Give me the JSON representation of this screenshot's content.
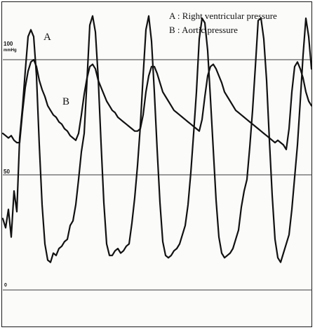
{
  "chart_data": {
    "type": "line",
    "title": "",
    "xlabel": "",
    "ylabel": "",
    "y_tick_labels": {
      "top": "100",
      "top_unit": "mmHg",
      "mid": "50",
      "zero": "0"
    },
    "y_ticks": [
      100,
      50,
      0
    ],
    "ylim": [
      -10,
      120
    ],
    "x_range": [
      0,
      449
    ],
    "grid": true,
    "legend": {
      "placement": "top-right",
      "entries": [
        {
          "key": "A",
          "text": "A : Right ventricular pressure"
        },
        {
          "key": "B",
          "text": "B : Aortic pressure"
        }
      ]
    },
    "series": [
      {
        "key": "A",
        "color": "#111111",
        "x": [
          4,
          8,
          12,
          16,
          20,
          24,
          28,
          32,
          36,
          40,
          44,
          48,
          52,
          56,
          60,
          64,
          68,
          72,
          76,
          80,
          84,
          88,
          92,
          96,
          100,
          104,
          108,
          112,
          116,
          120,
          124,
          128,
          132,
          136,
          140,
          144,
          148,
          152,
          156,
          160,
          164,
          168,
          172,
          176,
          180,
          184,
          188,
          192,
          196,
          200,
          204,
          208,
          212,
          216,
          220,
          224,
          228,
          232,
          236,
          240,
          244,
          248,
          252,
          256,
          260,
          264,
          268,
          272,
          276,
          280,
          284,
          288,
          292,
          296,
          300,
          304,
          308,
          312,
          316,
          320,
          324,
          328,
          332,
          336,
          340,
          344,
          348,
          352,
          356,
          360,
          364,
          368,
          372,
          376,
          380,
          384,
          388,
          392,
          396,
          400,
          404,
          408,
          412,
          416,
          420,
          424,
          428,
          432,
          436,
          440,
          444
        ],
        "values": [
          31,
          27,
          35,
          23,
          43,
          34,
          66,
          79,
          95,
          110,
          113,
          110,
          93,
          63,
          37,
          20,
          13,
          12,
          16,
          15,
          18,
          19,
          21,
          22,
          28,
          30,
          37,
          48,
          60,
          68,
          91,
          115,
          119,
          112,
          92,
          64,
          38,
          20,
          15,
          15,
          17,
          18,
          16,
          17,
          19,
          20,
          29,
          40,
          54,
          71,
          93,
          113,
          119,
          108,
          86,
          61,
          38,
          21,
          15,
          14,
          15,
          17,
          18,
          20,
          24,
          28,
          37,
          51,
          68,
          86,
          109,
          118,
          116,
          104,
          83,
          61,
          39,
          23,
          16,
          14,
          15,
          16,
          18,
          22,
          26,
          36,
          43,
          48,
          62,
          78,
          97,
          117,
          118,
          109,
          91,
          65,
          41,
          22,
          14,
          12,
          16,
          20,
          24,
          35,
          49,
          63,
          82,
          102,
          118,
          110,
          96
        ]
      },
      {
        "key": "B",
        "color": "#111111",
        "x": [
          4,
          8,
          12,
          16,
          20,
          24,
          28,
          32,
          36,
          40,
          44,
          48,
          52,
          56,
          60,
          64,
          68,
          72,
          76,
          80,
          84,
          88,
          92,
          96,
          100,
          104,
          108,
          112,
          116,
          120,
          124,
          128,
          132,
          136,
          140,
          144,
          148,
          152,
          156,
          160,
          164,
          168,
          172,
          176,
          180,
          184,
          188,
          192,
          196,
          200,
          204,
          208,
          212,
          216,
          220,
          224,
          228,
          232,
          236,
          240,
          244,
          248,
          252,
          256,
          260,
          264,
          268,
          272,
          276,
          280,
          284,
          288,
          292,
          296,
          300,
          304,
          308,
          312,
          316,
          320,
          324,
          328,
          332,
          336,
          340,
          344,
          348,
          352,
          356,
          360,
          364,
          368,
          372,
          376,
          380,
          384,
          388,
          392,
          396,
          400,
          404,
          408,
          412,
          416,
          420,
          424,
          428,
          432,
          436,
          440,
          444
        ],
        "values": [
          68,
          67,
          66,
          67,
          65,
          64,
          64,
          77,
          88,
          95,
          99,
          100,
          97,
          91,
          87,
          84,
          80,
          78,
          76,
          75,
          73,
          72,
          70,
          69,
          67,
          66,
          65,
          68,
          76,
          85,
          92,
          97,
          98,
          96,
          91,
          88,
          85,
          82,
          80,
          78,
          77,
          75,
          74,
          73,
          72,
          71,
          70,
          69,
          69,
          70,
          76,
          86,
          93,
          97,
          97,
          94,
          90,
          86,
          84,
          82,
          80,
          78,
          77,
          76,
          75,
          74,
          73,
          72,
          71,
          70,
          69,
          74,
          84,
          93,
          97,
          98,
          96,
          93,
          90,
          86,
          84,
          82,
          80,
          78,
          77,
          76,
          75,
          74,
          73,
          72,
          71,
          70,
          69,
          68,
          67,
          66,
          65,
          64,
          65,
          64,
          63,
          61,
          70,
          86,
          97,
          99,
          96,
          92,
          86,
          82,
          80
        ]
      }
    ],
    "curve_labels": [
      {
        "key": "A",
        "text": "A",
        "near_x": 62,
        "near_value": 110
      },
      {
        "key": "B",
        "text": "B",
        "near_x": 89,
        "near_value": 82
      }
    ]
  }
}
